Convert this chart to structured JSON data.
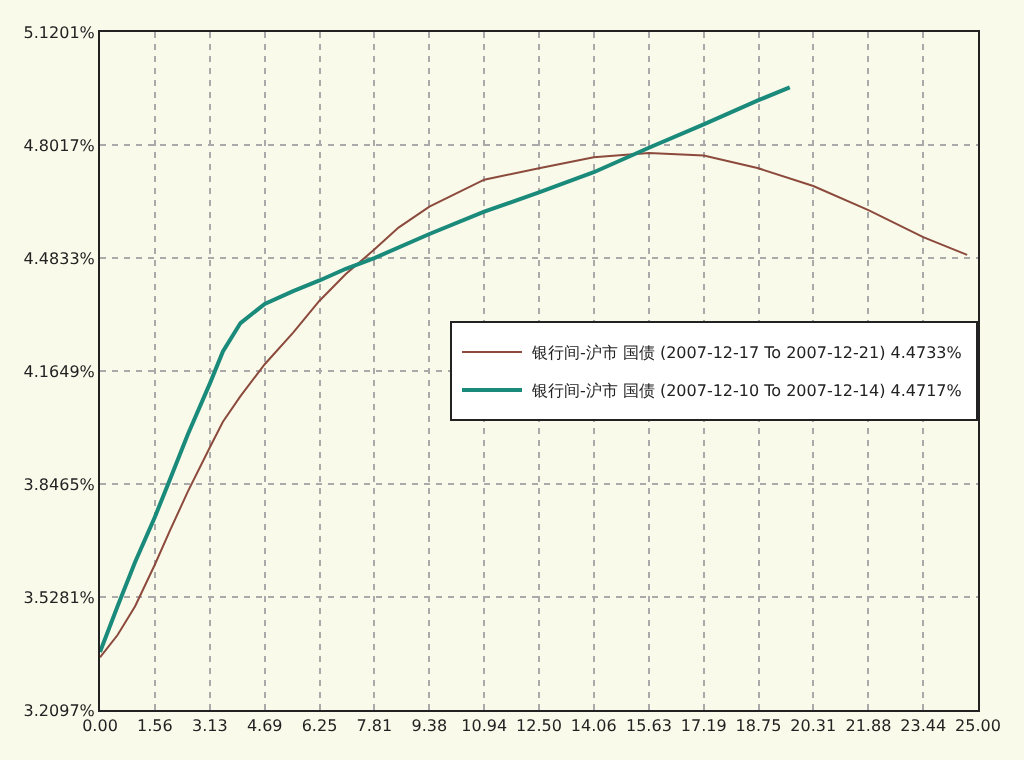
{
  "chart_data": {
    "type": "line",
    "series": [
      {
        "name": "银行间-沪市 国债 (2007-12-17 To 2007-12-21) 4.4733%",
        "color": "#8b4a3c",
        "x": [
          0,
          0.5,
          1,
          1.56,
          2,
          2.5,
          3.13,
          3.5,
          4,
          4.69,
          5.5,
          6.25,
          7,
          7.81,
          8.5,
          9.38,
          10.94,
          12.5,
          14.06,
          15.63,
          17.19,
          18.75,
          20.31,
          21.88,
          23.44,
          24.69
        ],
        "values": [
          3.358,
          3.421,
          3.502,
          3.619,
          3.717,
          3.825,
          3.95,
          4.022,
          4.094,
          4.184,
          4.273,
          4.363,
          4.438,
          4.507,
          4.569,
          4.628,
          4.704,
          4.736,
          4.767,
          4.779,
          4.772,
          4.736,
          4.686,
          4.618,
          4.542,
          4.492
        ]
      },
      {
        "name": "银行间-沪市 国债 (2007-12-10 To 2007-12-14) 4.4717%",
        "color": "#1a8a7a",
        "x": [
          0,
          0.5,
          1,
          1.56,
          2,
          2.5,
          3.13,
          3.5,
          4,
          4.69,
          5.5,
          6.25,
          7,
          7.81,
          9.38,
          10.94,
          12.5,
          14.06,
          15.63,
          17.19,
          18.75,
          19.64
        ],
        "values": [
          3.373,
          3.502,
          3.627,
          3.753,
          3.861,
          3.986,
          4.13,
          4.22,
          4.3,
          4.354,
          4.39,
          4.42,
          4.453,
          4.483,
          4.551,
          4.614,
          4.668,
          4.725,
          4.794,
          4.86,
          4.928,
          4.964
        ]
      }
    ],
    "xlim": [
      0,
      25
    ],
    "xticks": [
      {
        "value": 0,
        "label": "0.00"
      },
      1.56,
      3.13,
      4.69,
      6.25,
      7.81,
      9.38,
      10.94,
      {
        "value": 12.5,
        "label": "12.50"
      },
      14.06,
      15.63,
      17.19,
      18.75,
      20.31,
      21.88,
      23.44,
      {
        "value": 25,
        "label": "25.00"
      }
    ],
    "ylim": [
      3.2097,
      5.1201
    ],
    "yticks": [
      {
        "value": 3.2097,
        "label": "3.2097%"
      },
      {
        "value": 3.5281,
        "label": "3.5281%"
      },
      {
        "value": 3.8465,
        "label": "3.8465%"
      },
      {
        "value": 4.1649,
        "label": "4.1649%"
      },
      {
        "value": 4.4833,
        "label": "4.4833%"
      },
      {
        "value": 4.8017,
        "label": "4.8017%"
      },
      {
        "value": 5.1201,
        "label": "5.1201%"
      }
    ],
    "grid": true,
    "legend": "right",
    "marker": "none"
  }
}
